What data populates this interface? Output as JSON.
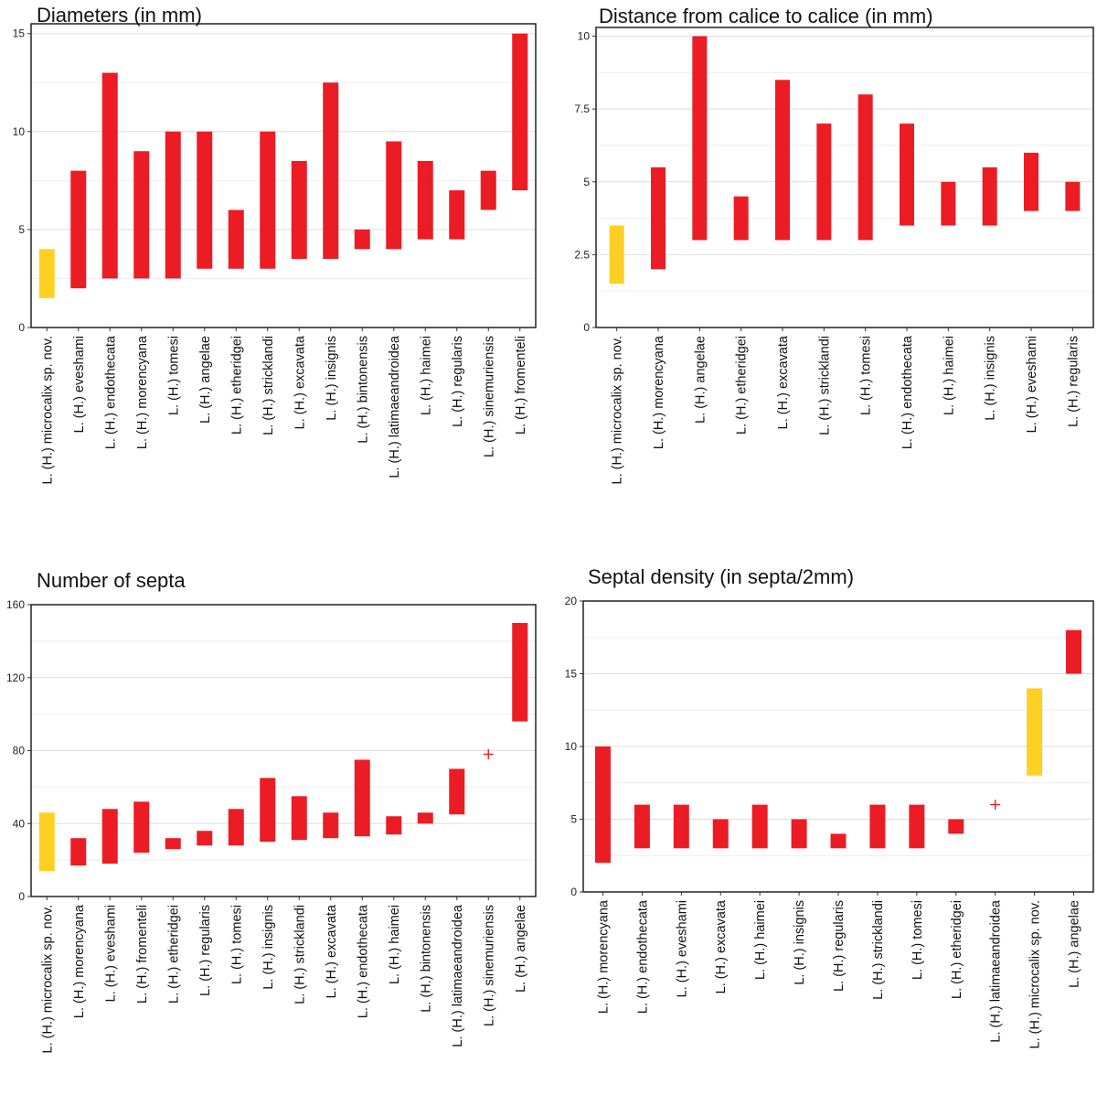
{
  "colors": {
    "highlight": "#FDD023",
    "bar": "#EC1C24",
    "plus": "#EC1C24"
  },
  "chart_data": [
    {
      "type": "bar",
      "subtype": "floating-range",
      "title": "Diameters (in mm)",
      "ylim": [
        0,
        15.5
      ],
      "yticks": [
        0,
        5,
        10,
        15
      ],
      "ytick_labels": [
        "0",
        "5",
        "10",
        "15"
      ],
      "categories": [
        "L. (H.) microcalix sp. nov.",
        "L. (H.) eveshami",
        "L. (H.) endothecata",
        "L. (H.) morencyana",
        "L. (H.) tomesi",
        "L. (H.) angelae",
        "L. (H.) etheridgei",
        "L. (H.) stricklandi",
        "L. (H.) excavata",
        "L. (H.) insignis",
        "L. (H.) bintonensis",
        "L. (H.) latimaeandroidea",
        "L. (H.) haimei",
        "L. (H.) regularis",
        "L. (H.) sinemuriensis",
        "L. (H.) fromenteli"
      ],
      "ranges": [
        [
          1.5,
          4
        ],
        [
          2,
          8
        ],
        [
          2.5,
          13
        ],
        [
          2.5,
          9
        ],
        [
          2.5,
          10
        ],
        [
          3,
          10
        ],
        [
          3,
          6
        ],
        [
          3,
          10
        ],
        [
          3.5,
          8.5
        ],
        [
          3.5,
          12.5
        ],
        [
          4,
          5
        ],
        [
          4,
          9.5
        ],
        [
          4.5,
          8.5
        ],
        [
          4.5,
          7
        ],
        [
          6,
          8
        ],
        [
          7,
          15
        ]
      ],
      "highlight": [
        0
      ],
      "points": []
    },
    {
      "type": "bar",
      "subtype": "floating-range",
      "title": "Distance from calice to calice (in mm)",
      "ylim": [
        0,
        10.3
      ],
      "yticks": [
        0,
        2.5,
        5,
        7.5,
        10
      ],
      "ytick_labels": [
        "0",
        "2.5",
        "5",
        "7.5",
        "10"
      ],
      "categories": [
        "L. (H.) microcalix sp. nov.",
        "L. (H.) morencyana",
        "L. (H.) angelae",
        "L. (H.) etheridgei",
        "L. (H.) excavata",
        "L. (H.) stricklandi",
        "L. (H.) tomesi",
        "L. (H.) endothecata",
        "L. (H.) haimei",
        "L. (H.) insignis",
        "L. (H.) eveshami",
        "L. (H.) regularis"
      ],
      "ranges": [
        [
          1.5,
          3.5
        ],
        [
          2,
          5.5
        ],
        [
          3,
          10
        ],
        [
          3,
          4.5
        ],
        [
          3,
          8.5
        ],
        [
          3,
          7
        ],
        [
          3,
          8
        ],
        [
          3.5,
          7
        ],
        [
          3.5,
          5
        ],
        [
          3.5,
          5.5
        ],
        [
          4,
          6
        ],
        [
          4,
          5
        ]
      ],
      "highlight": [
        0
      ],
      "points": []
    },
    {
      "type": "bar",
      "subtype": "floating-range",
      "title": "Number of septa",
      "ylim": [
        0,
        160
      ],
      "yticks": [
        0,
        40,
        80,
        120,
        160
      ],
      "ytick_labels": [
        "0",
        "40",
        "80",
        "120",
        "160"
      ],
      "categories": [
        "L. (H.) microcalix sp. nov.",
        "L. (H.) morencyana",
        "L. (H.) eveshami",
        "L. (H.) fromenteli",
        "L. (H.) etheridgei",
        "L. (H.) regularis",
        "L. (H.) tomesi",
        "L. (H.) insignis",
        "L. (H.) stricklandi",
        "L. (H.) excavata",
        "L. (H.) endothecata",
        "L. (H.) haimei",
        "L. (H.) bintonensis",
        "L. (H.) latimaeandroidea",
        "L. (H.) sinemuriensis",
        "L. (H.) angelae"
      ],
      "ranges": [
        [
          14,
          46
        ],
        [
          17,
          32
        ],
        [
          18,
          48
        ],
        [
          24,
          52
        ],
        [
          26,
          32
        ],
        [
          28,
          36
        ],
        [
          28,
          48
        ],
        [
          30,
          65
        ],
        [
          31,
          55
        ],
        [
          32,
          46
        ],
        [
          33,
          75
        ],
        [
          34,
          44
        ],
        [
          40,
          46
        ],
        [
          45,
          70
        ],
        null,
        [
          96,
          150
        ]
      ],
      "highlight": [
        0
      ],
      "points": [
        {
          "index": 14,
          "value": 78
        }
      ]
    },
    {
      "type": "bar",
      "subtype": "floating-range",
      "title": "Septal density (in septa/2mm)",
      "ylim": [
        0,
        20
      ],
      "yticks": [
        0,
        5,
        10,
        15,
        20
      ],
      "ytick_labels": [
        "0",
        "5",
        "10",
        "15",
        "20"
      ],
      "categories": [
        "L. (H.) morencyana",
        "L. (H.) endothecata",
        "L. (H.) eveshami",
        "L. (H.) excavata",
        "L. (H.) haimei",
        "L. (H.) insignis",
        "L. (H.) regularis",
        "L. (H.) stricklandi",
        "L. (H.) tomesi",
        "L. (H.) etheridgei",
        "L. (H.) latimaeandroidea",
        "L. (H.) microcalix sp. nov.",
        "L. (H.) angelae"
      ],
      "ranges": [
        [
          2,
          10
        ],
        [
          3,
          6
        ],
        [
          3,
          6
        ],
        [
          3,
          5
        ],
        [
          3,
          6
        ],
        [
          3,
          5
        ],
        [
          3,
          4
        ],
        [
          3,
          6
        ],
        [
          3,
          6
        ],
        [
          4,
          5
        ],
        null,
        [
          8,
          14
        ],
        [
          15,
          18
        ]
      ],
      "highlight": [
        11
      ],
      "points": [
        {
          "index": 10,
          "value": 6
        }
      ]
    }
  ]
}
